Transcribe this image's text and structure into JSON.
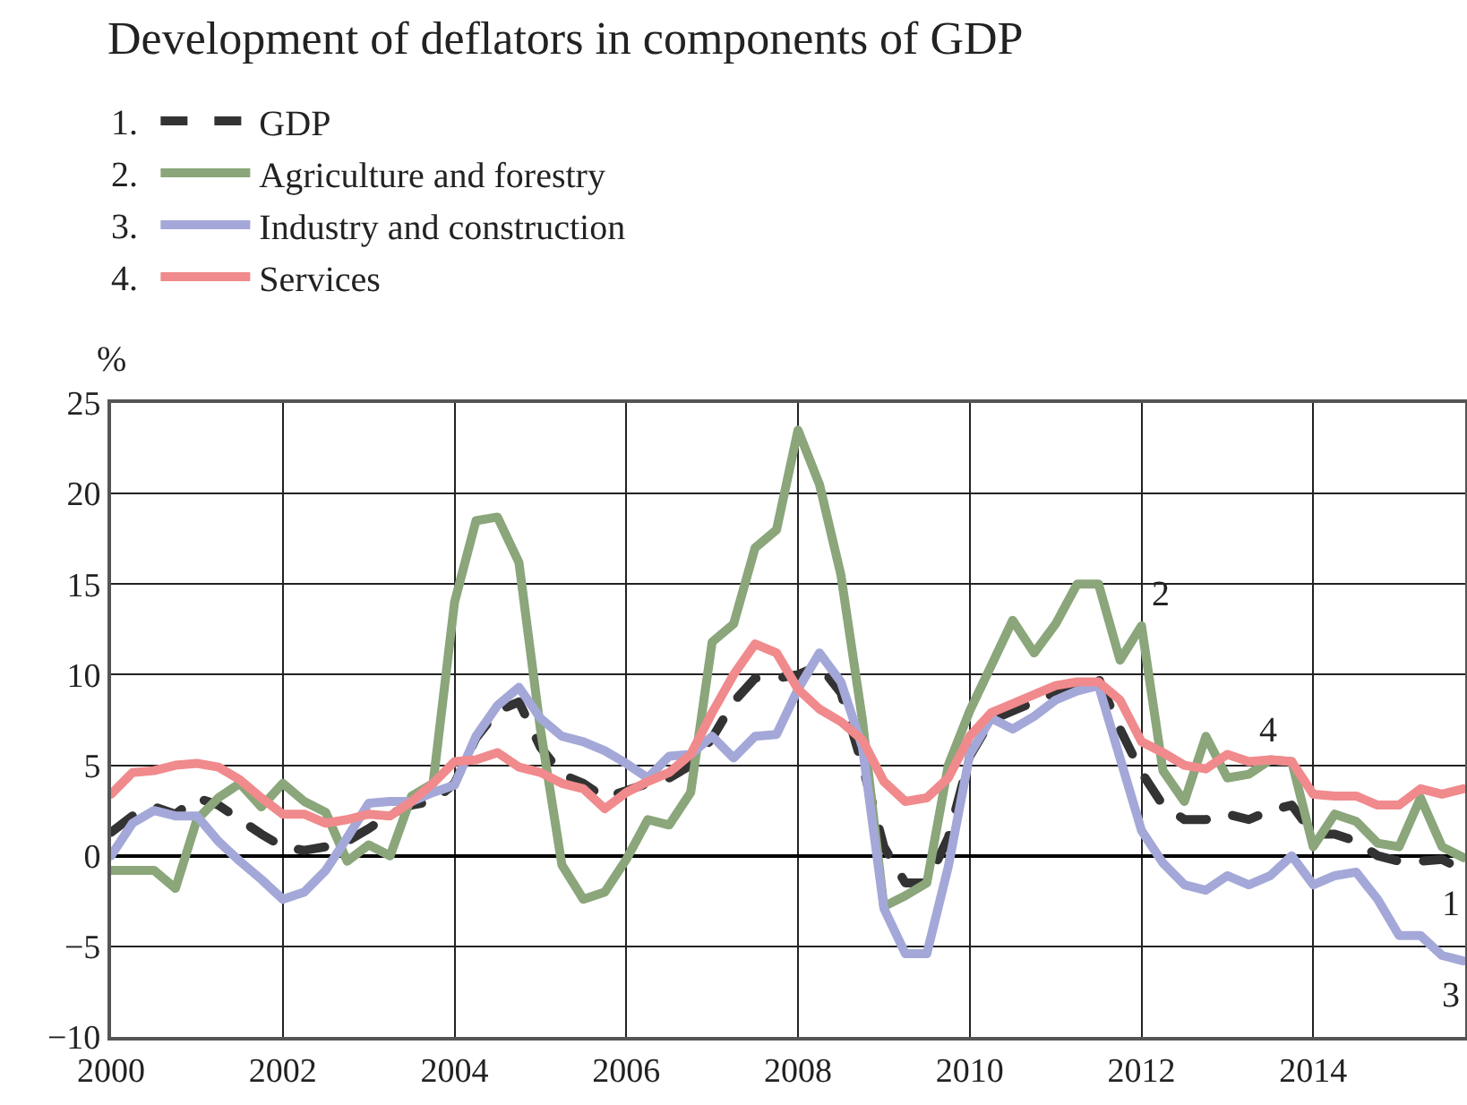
{
  "chart_data": {
    "type": "line",
    "title": "Development of deflators in components of GDP",
    "ylabel": "%",
    "x": [
      2000,
      2000.25,
      2000.5,
      2000.75,
      2001,
      2001.25,
      2001.5,
      2001.75,
      2002,
      2002.25,
      2002.5,
      2002.75,
      2003,
      2003.25,
      2003.5,
      2003.75,
      2004,
      2004.25,
      2004.5,
      2004.75,
      2005,
      2005.25,
      2005.5,
      2005.75,
      2006,
      2006.25,
      2006.5,
      2006.75,
      2007,
      2007.25,
      2007.5,
      2007.75,
      2008,
      2008.25,
      2008.5,
      2008.75,
      2009,
      2009.25,
      2009.5,
      2009.75,
      2010,
      2010.25,
      2010.5,
      2010.75,
      2011,
      2011.25,
      2011.5,
      2011.75,
      2012,
      2012.25,
      2012.5,
      2012.75,
      2013,
      2013.25,
      2013.5,
      2013.75,
      2014,
      2014.25,
      2014.5,
      2014.75,
      2015,
      2015.25,
      2015.5,
      2015.75
    ],
    "series": [
      {
        "name": "GDP",
        "color": "#333333",
        "line_style": "dashed",
        "values": [
          1.3,
          2.2,
          2.7,
          2.3,
          3.2,
          2.8,
          2.0,
          1.2,
          0.5,
          0.3,
          0.5,
          0.8,
          1.5,
          2.3,
          2.8,
          3.0,
          4.0,
          6.5,
          8.0,
          8.5,
          6.0,
          4.5,
          4.0,
          3.2,
          3.6,
          4.0,
          4.3,
          5.0,
          6.5,
          8.5,
          9.8,
          9.8,
          10.0,
          10.5,
          9.0,
          5.0,
          0.5,
          -1.5,
          -1.5,
          1.0,
          5.5,
          7.5,
          8.0,
          8.5,
          9.0,
          9.5,
          9.8,
          7.0,
          4.6,
          2.8,
          2.0,
          2.0,
          2.3,
          2.0,
          2.5,
          2.8,
          1.2,
          1.2,
          0.8,
          0.0,
          -0.3,
          -0.3,
          -0.2,
          -0.8
        ]
      },
      {
        "name": "Agriculture and forestry",
        "color": "#8aa67a",
        "line_style": "solid",
        "values": [
          -0.8,
          -0.8,
          -0.8,
          -1.8,
          2.0,
          3.2,
          4.0,
          2.7,
          4.0,
          3.0,
          2.4,
          -0.3,
          0.6,
          0.0,
          3.3,
          4.0,
          14.0,
          18.5,
          18.7,
          16.2,
          7.0,
          -0.5,
          -2.4,
          -2.0,
          -0.2,
          2.0,
          1.7,
          3.5,
          11.8,
          12.8,
          17.0,
          18.0,
          23.5,
          20.5,
          15.5,
          7.5,
          -2.8,
          -2.2,
          -1.5,
          5.0,
          8.0,
          10.5,
          13.0,
          11.2,
          12.8,
          15.0,
          15.0,
          10.8,
          12.7,
          4.7,
          3.0,
          6.6,
          4.3,
          4.5,
          5.3,
          5.2,
          0.5,
          2.3,
          1.9,
          0.7,
          0.5,
          3.2,
          0.5,
          -0.1
        ]
      },
      {
        "name": "Industry and construction",
        "color": "#a4a8d8",
        "line_style": "solid",
        "values": [
          0.0,
          1.8,
          2.5,
          2.2,
          2.2,
          0.8,
          -0.3,
          -1.3,
          -2.4,
          -2.0,
          -0.8,
          1.0,
          2.9,
          3.0,
          3.0,
          3.5,
          3.9,
          6.6,
          8.3,
          9.3,
          7.6,
          6.6,
          6.3,
          5.8,
          5.1,
          4.3,
          5.5,
          5.6,
          6.6,
          5.4,
          6.6,
          6.7,
          9.2,
          11.2,
          9.6,
          6.0,
          -2.9,
          -5.4,
          -5.4,
          -0.6,
          5.6,
          7.6,
          7.0,
          7.7,
          8.6,
          9.1,
          9.4,
          5.4,
          1.4,
          -0.4,
          -1.6,
          -1.9,
          -1.1,
          -1.6,
          -1.1,
          0.0,
          -1.6,
          -1.1,
          -0.9,
          -2.4,
          -4.4,
          -4.4,
          -5.5,
          -5.8
        ]
      },
      {
        "name": "Services",
        "color": "#f08a8c",
        "line_style": "solid",
        "values": [
          3.4,
          4.6,
          4.7,
          5.0,
          5.1,
          4.9,
          4.2,
          3.2,
          2.3,
          2.3,
          1.8,
          2.0,
          2.3,
          2.2,
          3.0,
          4.0,
          5.2,
          5.3,
          5.7,
          4.9,
          4.6,
          4.0,
          3.7,
          2.6,
          3.5,
          4.1,
          4.6,
          5.6,
          7.9,
          10.0,
          11.7,
          11.2,
          9.2,
          8.1,
          7.4,
          6.4,
          4.1,
          3.0,
          3.2,
          4.3,
          6.6,
          7.9,
          8.4,
          8.9,
          9.4,
          9.6,
          9.6,
          8.6,
          6.3,
          5.7,
          5.0,
          4.8,
          5.6,
          5.2,
          5.3,
          5.2,
          3.4,
          3.3,
          3.3,
          2.8,
          2.8,
          3.7,
          3.4,
          3.7
        ]
      }
    ],
    "xlim": [
      2000,
      2015.77
    ],
    "xticks": [
      2000,
      2002,
      2004,
      2006,
      2008,
      2010,
      2012,
      2014
    ],
    "ylim": [
      -10,
      25
    ],
    "yticks": [
      {
        "value": -10,
        "label": "−10"
      },
      {
        "value": -5,
        "label": "−5"
      },
      0,
      5,
      10,
      15,
      20,
      25
    ],
    "grid": true,
    "legend": "top left",
    "marker": "none",
    "annotations": [
      "1.",
      "2.",
      "3.",
      "4.",
      {
        "text": "2",
        "x": 2012,
        "y": 12.7
      },
      {
        "text": "4",
        "x": 2013.25,
        "y": 5.2
      },
      {
        "text": "1",
        "x": 2015.75,
        "y": -0.8
      },
      {
        "text": "3",
        "x": 2015.75,
        "y": -5.8
      }
    ]
  }
}
